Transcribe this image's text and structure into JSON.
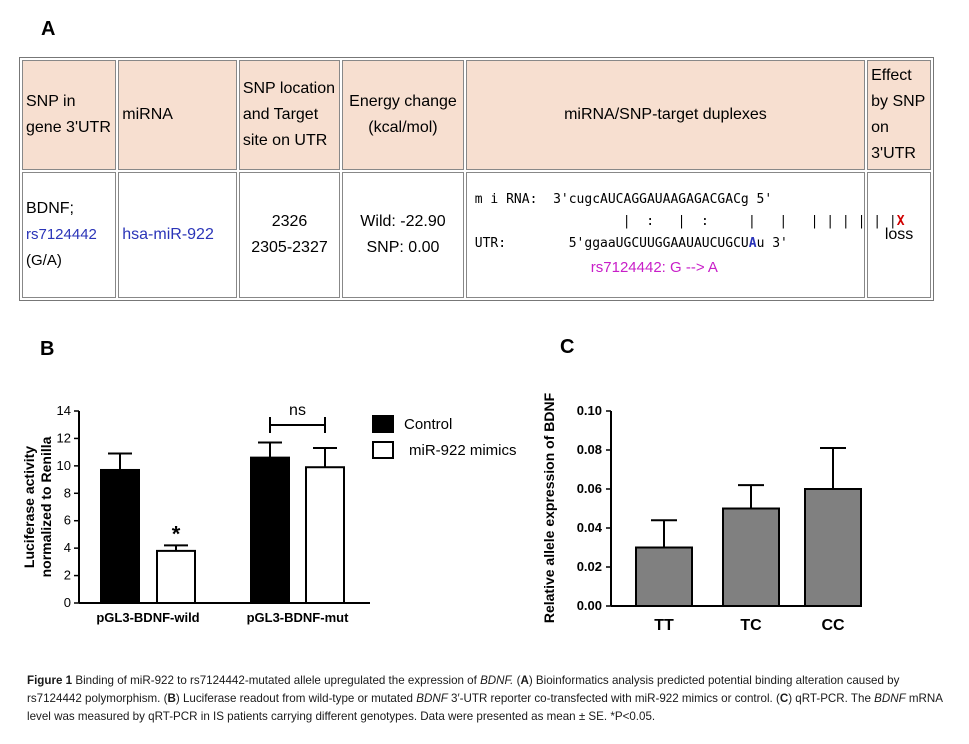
{
  "panels": {
    "a": "A",
    "b": "B",
    "c": "C"
  },
  "table": {
    "headers": {
      "snp": "SNP in gene 3'UTR",
      "mirna": "miRNA",
      "location": "SNP location and Target site on UTR",
      "energy": "Energy change (kcal/mol)",
      "duplex": "miRNA/SNP-target duplexes",
      "effect": "Effect by SNP on 3'UTR"
    },
    "row": {
      "gene": "BDNF;",
      "snp_id": "rs7124442",
      "alleles": "(G/A)",
      "mirna": "hsa-miR-922",
      "location_1": "2326",
      "location_2": "2305-2327",
      "energy_wild": "Wild: -22.90",
      "energy_snp": "SNP: 0.00",
      "mirna_label": "m i RNA:",
      "mirna_seq": "3'cugcAUCAGGAUAAGAGACGACg 5'",
      "pairing": "|  :   |  :     |   |   | | | | | |",
      "pairing_x": "X",
      "utr_label": "UTR:",
      "utr_seq_pre": "5'ggaaUGCUUGGAAUAUCUGCU",
      "utr_seq_snp": "A",
      "utr_seq_post": "u 3'",
      "snp_note": "rs7124442: G --> A",
      "effect": "loss"
    }
  },
  "chart_data": [
    {
      "type": "bar",
      "ylabel": "Luciferase activity normalized to Renilla",
      "categories": [
        "pGL3-BDNF-wild",
        "pGL3-BDNF-mut"
      ],
      "series": [
        {
          "name": "Control",
          "values": [
            9.7,
            10.6
          ],
          "errors": [
            1.2,
            1.1
          ],
          "color": "#000000"
        },
        {
          "name": "miR-922 mimics",
          "values": [
            3.8,
            9.9
          ],
          "errors": [
            0.4,
            1.4
          ],
          "color": "#ffffff"
        }
      ],
      "ylim": [
        0,
        14
      ],
      "yticks": [
        0,
        2,
        4,
        6,
        8,
        10,
        12,
        14
      ],
      "annotations": {
        "sig": "*",
        "ns": "ns"
      },
      "legend": "right"
    },
    {
      "type": "bar",
      "ylabel": "Relative allele expression of BDNF",
      "categories": [
        "TT",
        "TC",
        "CC"
      ],
      "values": [
        0.03,
        0.05,
        0.06
      ],
      "errors": [
        0.014,
        0.012,
        0.021
      ],
      "color": "#808080",
      "ylim": [
        0,
        0.1
      ],
      "yticks": [
        "0.00",
        "0.02",
        "0.04",
        "0.06",
        "0.08",
        "0.10"
      ]
    }
  ],
  "caption": {
    "fig": "Figure 1",
    "text_1": " Binding of miR-922 to rs7124442-mutated allele upregulated the expression of ",
    "gene_1": "BDNF.",
    "open_a": " (",
    "label_a": "A",
    "text_a": ") Bioinformatics analysis predicted potential binding alteration caused by rs7124442 polymorphism. (",
    "label_b": "B",
    "text_b1": ") Luciferase readout from wild-type or mutated ",
    "gene_2": "BDNF",
    "text_b2": " 3′-UTR reporter co-transfected with miR-922 mimics or control. (",
    "label_c": "C",
    "text_c1": ") qRT-PCR. The ",
    "gene_3": "BDNF",
    "text_c2": " mRNA level was measured by qRT-PCR in IS patients carrying different genotypes. Data were presented as mean ± SE. *P<0.05."
  }
}
